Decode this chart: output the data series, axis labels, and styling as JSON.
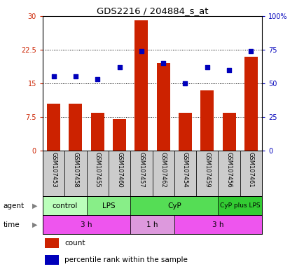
{
  "title": "GDS2216 / 204884_s_at",
  "samples": [
    "GSM107453",
    "GSM107458",
    "GSM107455",
    "GSM107460",
    "GSM107457",
    "GSM107462",
    "GSM107454",
    "GSM107459",
    "GSM107456",
    "GSM107461"
  ],
  "counts": [
    10.5,
    10.5,
    8.5,
    7.0,
    29.0,
    19.5,
    8.5,
    13.5,
    8.5,
    21.0
  ],
  "percentiles": [
    55,
    55,
    53,
    62,
    74,
    65,
    50,
    62,
    60,
    74
  ],
  "ylim_left": [
    0,
    30
  ],
  "ylim_right": [
    0,
    100
  ],
  "yticks_left": [
    0,
    7.5,
    15,
    22.5,
    30
  ],
  "yticks_right": [
    0,
    25,
    50,
    75,
    100
  ],
  "ytick_labels_left": [
    "0",
    "7.5",
    "15",
    "22.5",
    "30"
  ],
  "ytick_labels_right": [
    "0",
    "25",
    "50",
    "75",
    "100%"
  ],
  "bar_color": "#cc2200",
  "dot_color": "#0000bb",
  "agent_groups": [
    {
      "label": "control",
      "start": 0,
      "end": 2,
      "color": "#bbffbb"
    },
    {
      "label": "LPS",
      "start": 2,
      "end": 4,
      "color": "#88ee88"
    },
    {
      "label": "CyP",
      "start": 4,
      "end": 8,
      "color": "#55dd55"
    },
    {
      "label": "CyP plus LPS",
      "start": 8,
      "end": 10,
      "color": "#33cc33"
    }
  ],
  "time_groups": [
    {
      "label": "3 h",
      "start": 0,
      "end": 4,
      "color": "#ee55ee"
    },
    {
      "label": "1 h",
      "start": 4,
      "end": 6,
      "color": "#dd99dd"
    },
    {
      "label": "3 h",
      "start": 6,
      "end": 10,
      "color": "#ee55ee"
    }
  ],
  "bg_color": "#ffffff",
  "plot_bg_color": "#ffffff",
  "label_agent": "agent",
  "label_time": "time",
  "legend_count": "count",
  "legend_pct": "percentile rank within the sample",
  "sample_box_color": "#cccccc"
}
